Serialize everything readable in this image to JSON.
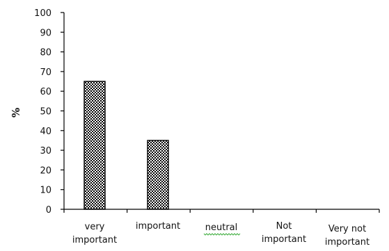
{
  "chart_data": {
    "type": "bar",
    "categories": [
      [
        "very",
        "important"
      ],
      [
        "important"
      ],
      [
        "neutral"
      ],
      [
        "Not",
        "important"
      ],
      [
        "Very not",
        "important"
      ]
    ],
    "values": [
      65,
      35,
      0,
      0,
      0
    ],
    "ylabel": "%",
    "ylim": [
      0,
      100
    ],
    "yticks": [
      0,
      10,
      20,
      30,
      40,
      50,
      60,
      70,
      80,
      90,
      100
    ],
    "bar_pattern": "checkered black and white",
    "grid": false,
    "legend": "none"
  }
}
